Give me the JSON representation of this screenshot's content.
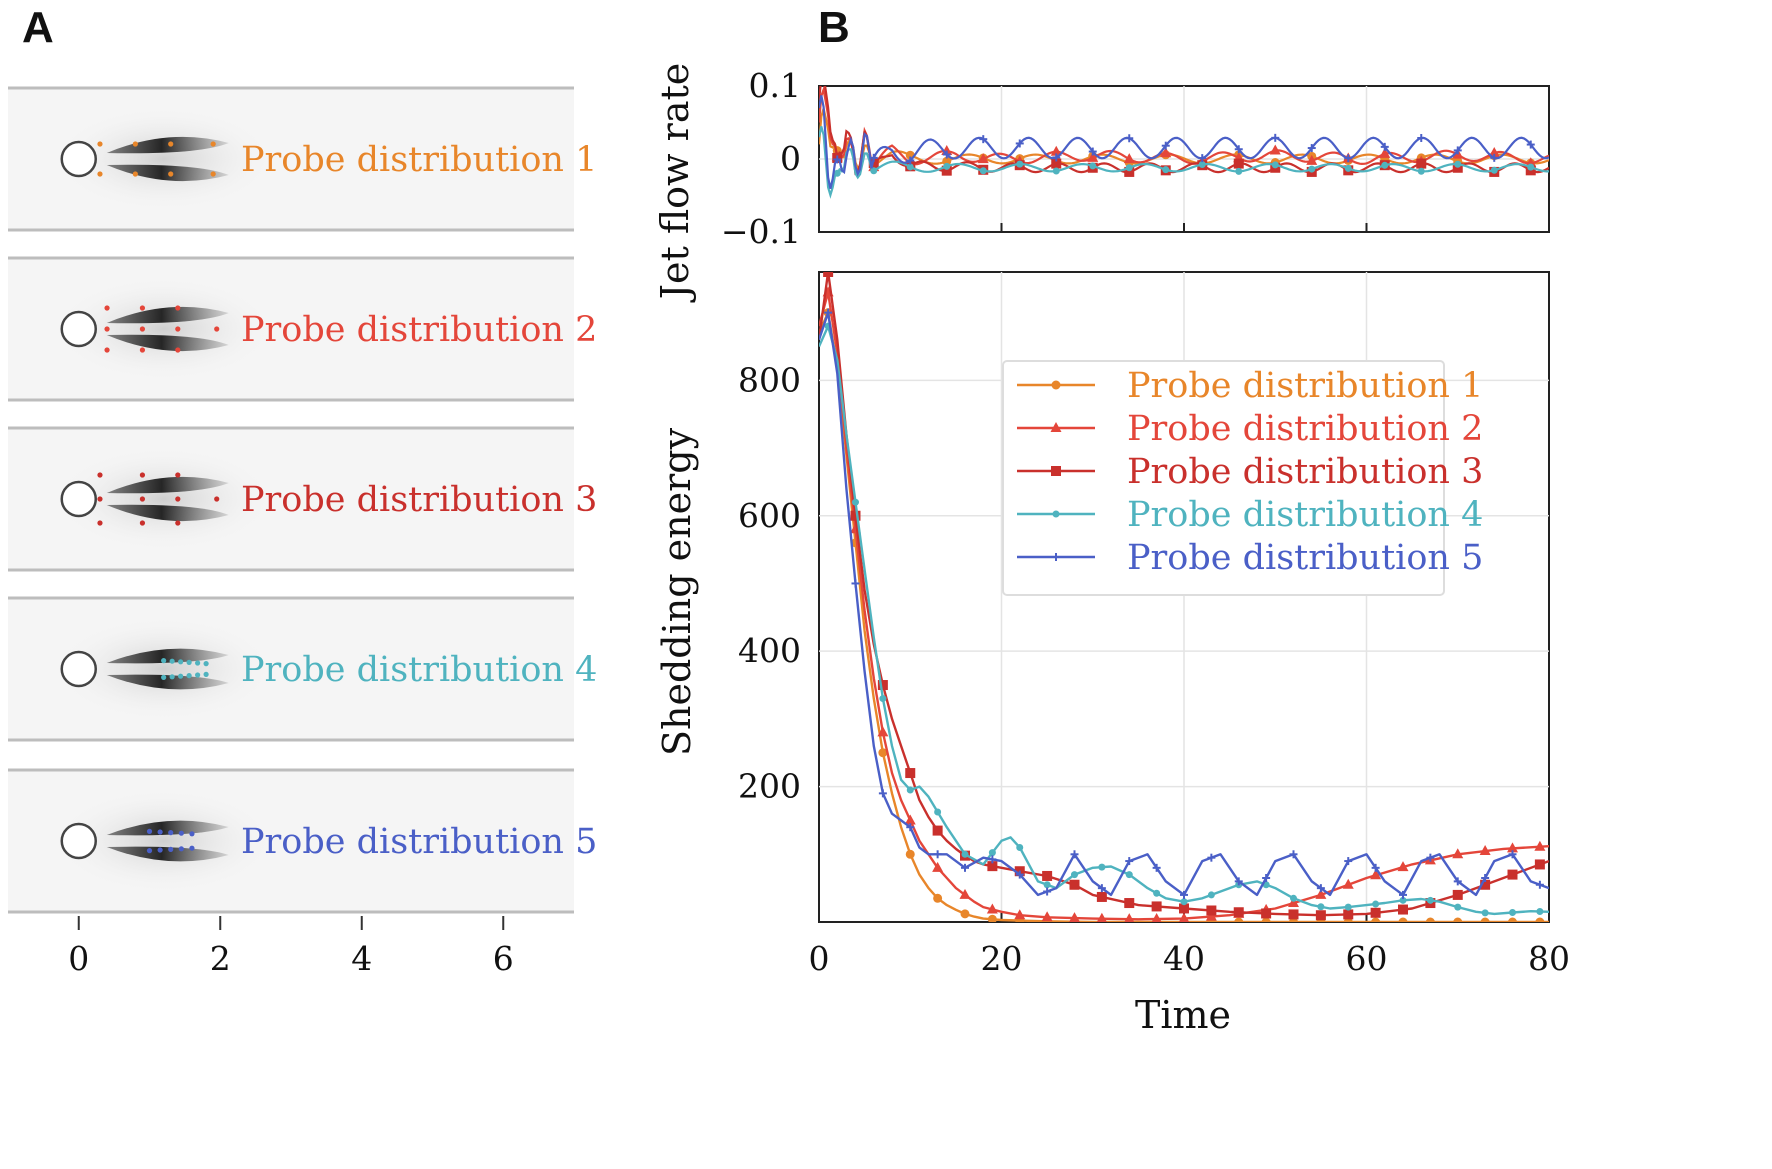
{
  "panels": {
    "a": "A",
    "b": "B"
  },
  "colors": {
    "p1": "#e8862a",
    "p2": "#e4463a",
    "p3": "#c9302c",
    "p4": "#4fb3bf",
    "p5": "#4a5fc7"
  },
  "panel_a": {
    "labels": [
      "Probe distribution 1",
      "Probe distribution 2",
      "Probe distribution 3",
      "Probe distribution 4",
      "Probe distribution 5"
    ],
    "x_ticks": [
      "0",
      "2",
      "4",
      "6"
    ],
    "x_range": [
      -1,
      7
    ]
  },
  "chart_data": [
    {
      "type": "line",
      "ylabel": "Jet flow rate",
      "xlim": [
        0,
        80
      ],
      "ylim": [
        -0.1,
        0.1
      ],
      "y_ticks": [
        "0.1",
        "0",
        "−0.1"
      ],
      "grid": true,
      "series": [
        {
          "name": "Probe distribution 1",
          "x": [
            0,
            1,
            2,
            3,
            4,
            5,
            6,
            8,
            10,
            15,
            20,
            30,
            40,
            50,
            60,
            70,
            80
          ],
          "y": [
            0.02,
            0.06,
            -0.01,
            0.03,
            -0.005,
            0.01,
            0.0,
            0.005,
            0.0,
            0.0,
            0.0,
            0.0,
            0.0,
            0.0,
            0.0,
            0.0,
            0.0
          ]
        },
        {
          "name": "Probe distribution 2",
          "x": [
            0,
            1,
            2,
            3,
            4,
            5,
            6,
            8,
            10,
            15,
            20,
            30,
            40,
            50,
            60,
            70,
            80
          ],
          "y": [
            0.05,
            0.08,
            -0.02,
            0.04,
            -0.02,
            0.03,
            -0.01,
            0.01,
            0.0,
            0.005,
            0.0,
            0.005,
            0.0,
            0.005,
            0.0,
            0.005,
            0.0
          ]
        },
        {
          "name": "Probe distribution 3",
          "x": [
            0,
            1,
            2,
            3,
            4,
            5,
            6,
            8,
            10,
            15,
            20,
            30,
            40,
            50,
            60,
            70,
            80
          ],
          "y": [
            0.08,
            0.09,
            -0.02,
            0.05,
            -0.02,
            0.03,
            -0.015,
            0.01,
            -0.01,
            -0.01,
            -0.012,
            -0.012,
            -0.012,
            -0.012,
            -0.012,
            -0.012,
            -0.012
          ]
        },
        {
          "name": "Probe distribution 4",
          "x": [
            0,
            1,
            2,
            3,
            4,
            5,
            6,
            8,
            10,
            15,
            20,
            30,
            40,
            50,
            60,
            70,
            80
          ],
          "y": [
            0.03,
            -0.02,
            -0.04,
            0.02,
            -0.02,
            0.0,
            -0.01,
            -0.01,
            -0.012,
            -0.012,
            -0.012,
            -0.012,
            -0.012,
            -0.012,
            -0.012,
            -0.012,
            -0.012
          ]
        },
        {
          "name": "Probe distribution 5",
          "x": [
            0,
            1,
            2,
            3,
            4,
            5,
            6,
            8,
            10,
            15,
            20,
            30,
            40,
            50,
            60,
            70,
            80
          ],
          "y": [
            0.07,
            0.0,
            -0.03,
            0.02,
            -0.01,
            0.02,
            -0.01,
            0.01,
            0.01,
            0.015,
            0.015,
            0.015,
            0.015,
            0.015,
            0.015,
            0.015,
            0.015
          ]
        }
      ]
    },
    {
      "type": "line",
      "xlabel": "Time",
      "ylabel": "Shedding energy",
      "xlim": [
        0,
        80
      ],
      "ylim": [
        0,
        960
      ],
      "x_ticks": [
        "0",
        "20",
        "40",
        "60",
        "80"
      ],
      "y_ticks": [
        "200",
        "400",
        "600",
        "800"
      ],
      "grid": true,
      "legend": "upper-right",
      "series": [
        {
          "name": "Probe distribution 1",
          "x": [
            0,
            1,
            2,
            3,
            4,
            5,
            6,
            7,
            8,
            9,
            10,
            11,
            12,
            13,
            14,
            15,
            16,
            17,
            18,
            20,
            22,
            25,
            30,
            40,
            50,
            60,
            70,
            80
          ],
          "y": [
            870,
            900,
            820,
            690,
            560,
            430,
            330,
            250,
            190,
            140,
            100,
            70,
            50,
            35,
            25,
            18,
            12,
            8,
            5,
            3,
            2,
            1,
            0,
            0,
            0,
            0,
            0,
            0
          ]
        },
        {
          "name": "Probe distribution 2",
          "x": [
            0,
            1,
            2,
            3,
            4,
            5,
            6,
            7,
            8,
            9,
            10,
            11,
            12,
            13,
            14,
            15,
            16,
            17,
            18,
            20,
            22,
            25,
            30,
            35,
            40,
            45,
            50,
            55,
            60,
            65,
            70,
            75,
            80
          ],
          "y": [
            880,
            930,
            840,
            700,
            580,
            460,
            360,
            280,
            220,
            180,
            150,
            120,
            100,
            80,
            65,
            50,
            40,
            30,
            22,
            15,
            10,
            7,
            5,
            4,
            5,
            10,
            20,
            40,
            65,
            85,
            100,
            108,
            112
          ]
        },
        {
          "name": "Probe distribution 3",
          "x": [
            0,
            1,
            2,
            3,
            4,
            5,
            6,
            7,
            8,
            9,
            10,
            11,
            12,
            13,
            14,
            15,
            16,
            17,
            18,
            20,
            22,
            25,
            28,
            30,
            35,
            40,
            45,
            50,
            55,
            60,
            65,
            70,
            75,
            80
          ],
          "y": [
            860,
            960,
            860,
            720,
            600,
            490,
            410,
            350,
            300,
            260,
            220,
            180,
            155,
            135,
            120,
            108,
            98,
            90,
            85,
            80,
            75,
            68,
            55,
            40,
            25,
            20,
            15,
            12,
            10,
            12,
            20,
            40,
            65,
            90
          ]
        },
        {
          "name": "Probe distribution 4",
          "x": [
            0,
            1,
            2,
            3,
            4,
            5,
            6,
            7,
            8,
            9,
            10,
            11,
            12,
            14,
            16,
            18,
            20,
            21,
            22,
            24,
            26,
            28,
            30,
            32,
            34,
            36,
            38,
            40,
            42,
            44,
            46,
            48,
            50,
            52,
            54,
            56,
            58,
            60,
            62,
            64,
            66,
            68,
            70,
            72,
            74,
            76,
            78,
            80
          ],
          "y": [
            850,
            880,
            830,
            720,
            620,
            520,
            420,
            330,
            260,
            210,
            195,
            200,
            185,
            140,
            100,
            85,
            120,
            125,
            110,
            60,
            50,
            70,
            80,
            82,
            70,
            50,
            35,
            30,
            35,
            45,
            55,
            60,
            50,
            35,
            25,
            20,
            22,
            25,
            28,
            32,
            34,
            30,
            22,
            15,
            12,
            14,
            16,
            15
          ]
        },
        {
          "name": "Probe distribution 5",
          "x": [
            0,
            1,
            2,
            3,
            4,
            5,
            6,
            7,
            8,
            9,
            10,
            11,
            12,
            14,
            16,
            18,
            20,
            22,
            24,
            26,
            28,
            30,
            32,
            34,
            36,
            38,
            40,
            42,
            44,
            46,
            48,
            50,
            52,
            54,
            56,
            58,
            60,
            62,
            64,
            66,
            68,
            70,
            72,
            74,
            76,
            78,
            80
          ],
          "y": [
            860,
            900,
            810,
            640,
            500,
            370,
            260,
            190,
            160,
            150,
            140,
            110,
            100,
            100,
            80,
            95,
            90,
            70,
            40,
            50,
            100,
            60,
            40,
            90,
            100,
            60,
            40,
            90,
            100,
            60,
            40,
            90,
            100,
            60,
            40,
            90,
            100,
            60,
            40,
            90,
            100,
            60,
            40,
            90,
            100,
            60,
            50
          ]
        }
      ]
    }
  ]
}
